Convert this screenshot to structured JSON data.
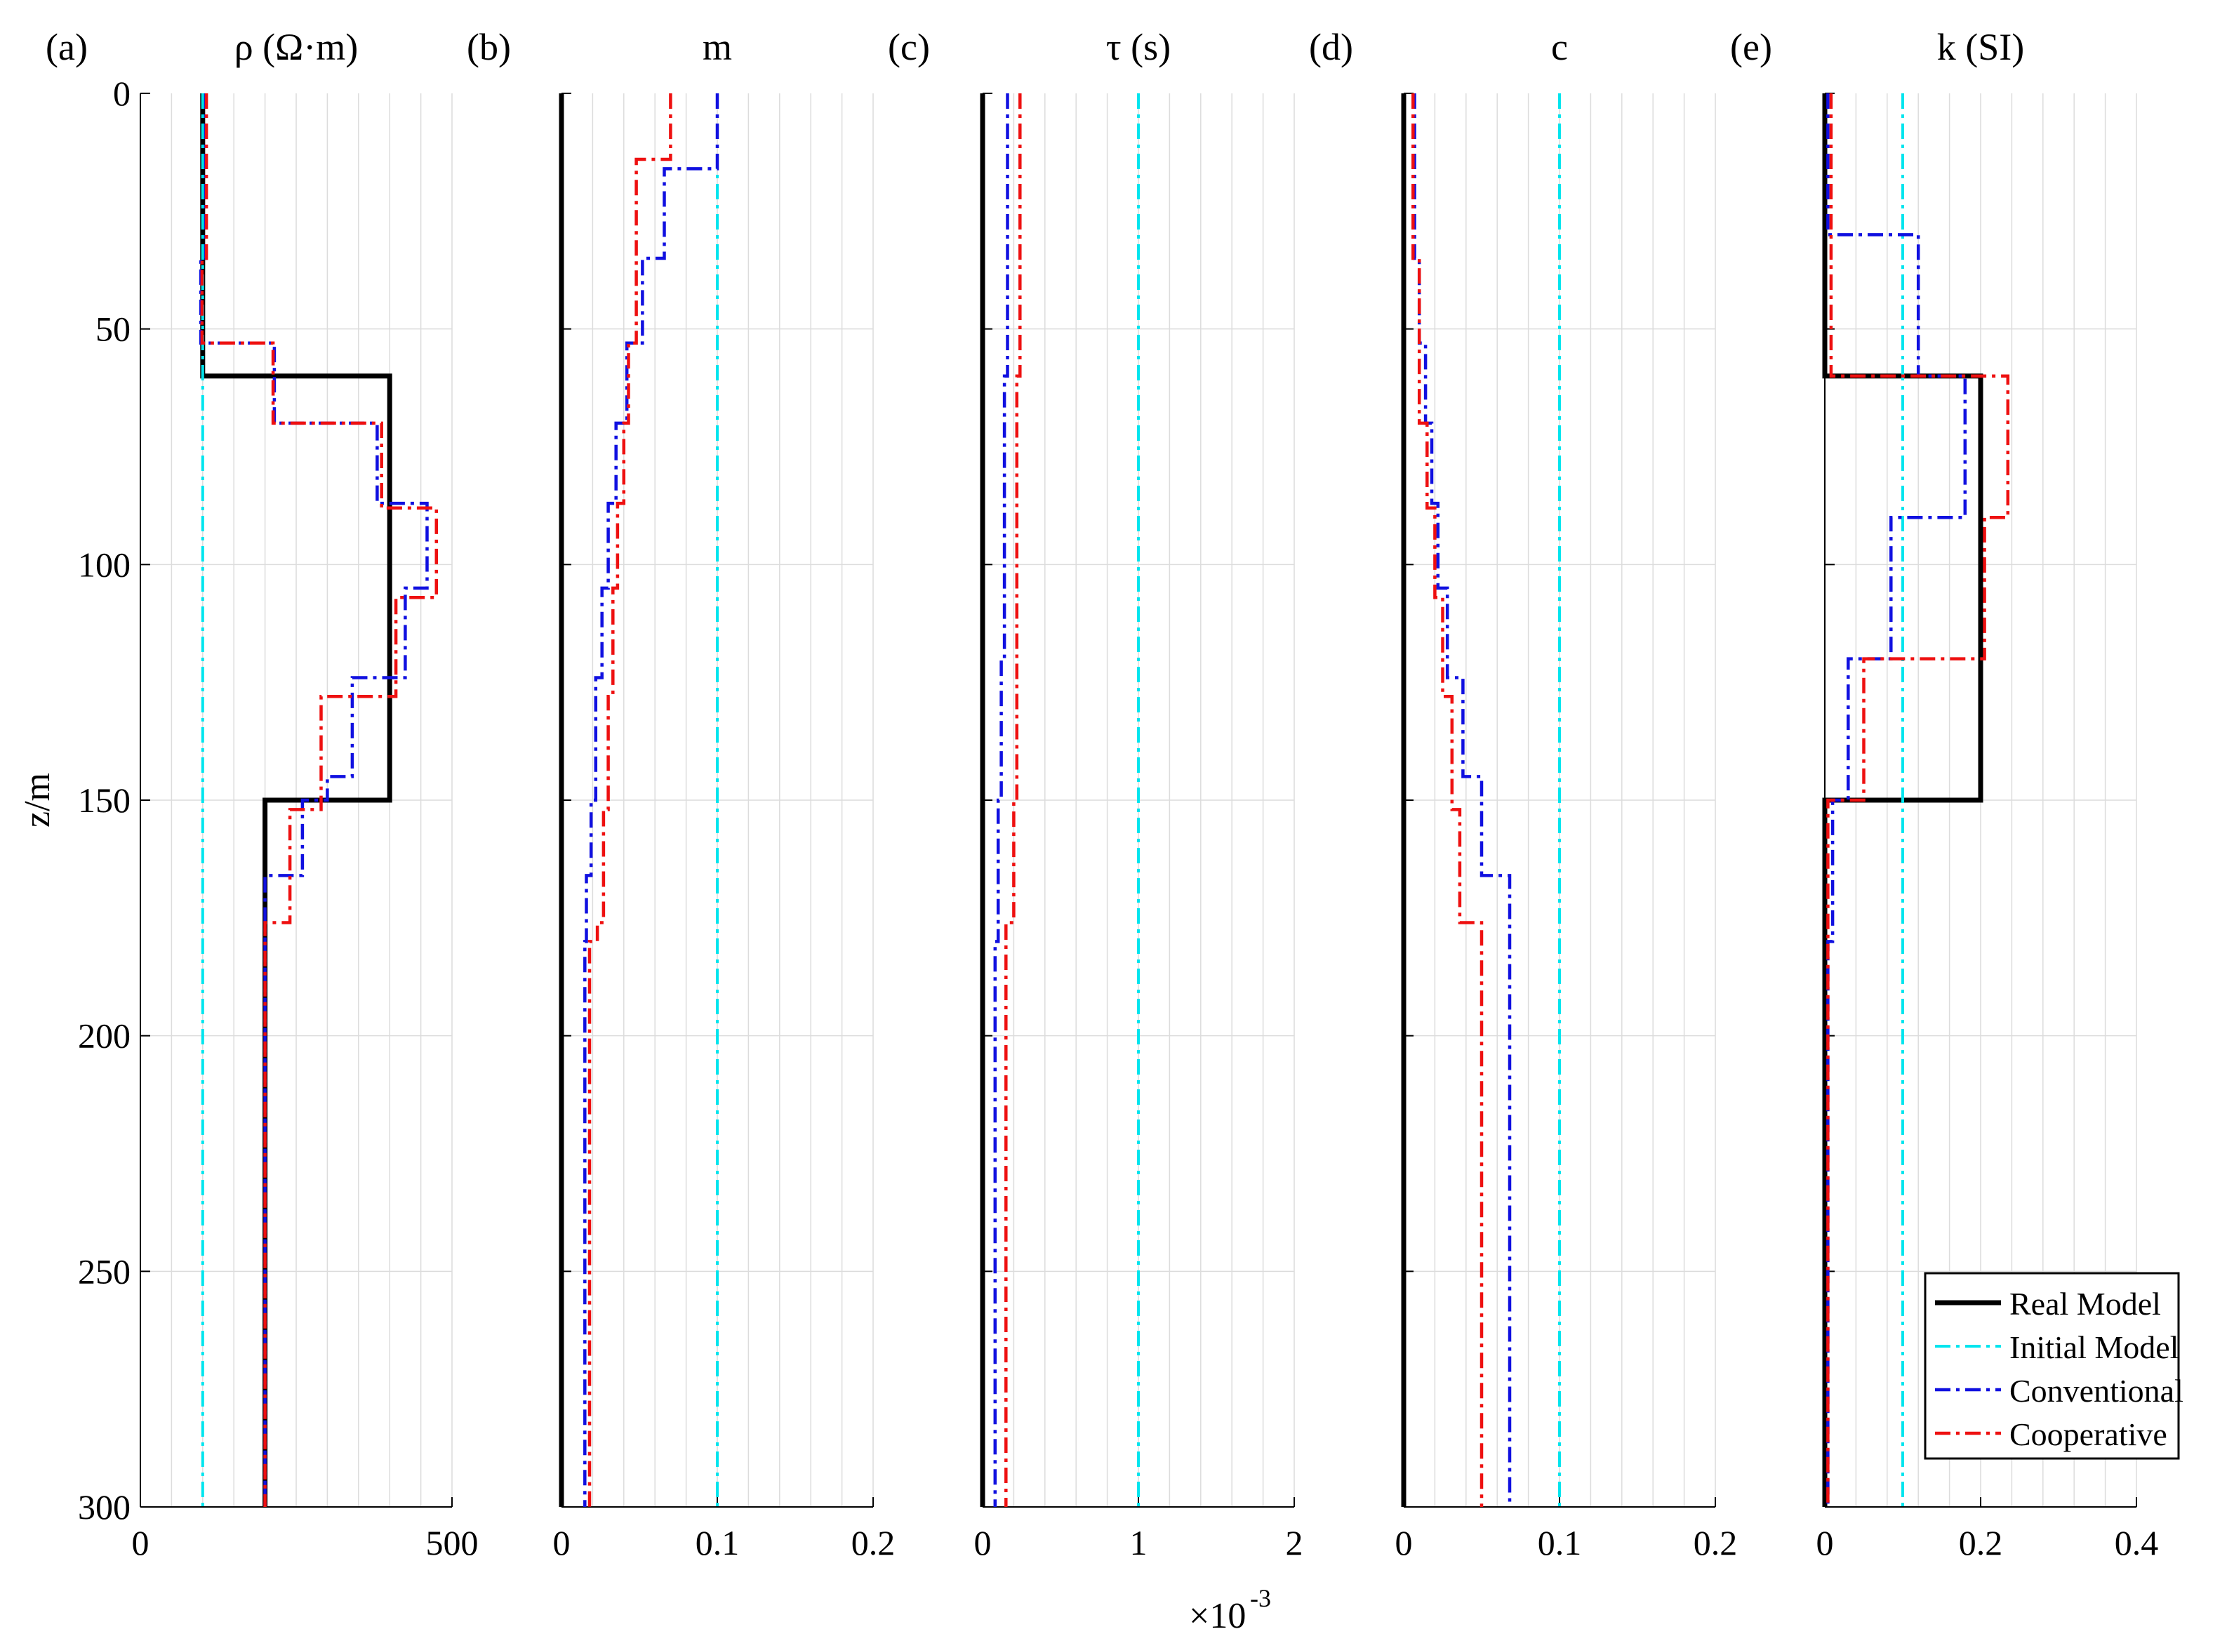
{
  "figure": {
    "ylabel": "z/m",
    "ylim": [
      0,
      300
    ],
    "yticks": [
      0,
      50,
      100,
      150,
      200,
      250,
      300
    ],
    "exponent_label": {
      "base": "×10",
      "power": "-3",
      "panel": 2
    }
  },
  "legend": {
    "placement": "bottom-right",
    "entries": [
      {
        "name": "Real Model",
        "color": "#000000",
        "dash": "solid"
      },
      {
        "name": "Initial Model",
        "color": "#00e5ee",
        "dash": "dashdot"
      },
      {
        "name": "Conventional",
        "color": "#1010e0",
        "dash": "dashdot"
      },
      {
        "name": "Cooperative",
        "color": "#ee1010",
        "dash": "dashdot"
      }
    ]
  },
  "chart_data": [
    {
      "type": "line",
      "panel_label": "(a)",
      "title": "ρ (Ω·m)",
      "xlim": [
        0,
        500
      ],
      "xticks": [
        0,
        500
      ],
      "xticklabels": [
        "0",
        "500"
      ],
      "minor_grid_step": 50,
      "series": [
        {
          "name": "Real Model",
          "x": [
            100,
            100,
            400,
            400,
            200,
            200
          ],
          "y": [
            0,
            60,
            60,
            150,
            150,
            300
          ]
        },
        {
          "name": "Initial Model",
          "x": [
            100,
            100
          ],
          "y": [
            0,
            300
          ]
        },
        {
          "name": "Conventional",
          "x": [
            105,
            105,
            97,
            97,
            215,
            215,
            380,
            380,
            460,
            460,
            425,
            425,
            340,
            340,
            300,
            300,
            260,
            260,
            200,
            200
          ],
          "y": [
            0,
            35,
            35,
            53,
            53,
            70,
            70,
            87,
            87,
            105,
            105,
            124,
            124,
            145,
            145,
            150,
            150,
            166,
            166,
            300
          ]
        },
        {
          "name": "Cooperative",
          "x": [
            106,
            106,
            99,
            99,
            213,
            213,
            387,
            387,
            475,
            475,
            410,
            410,
            290,
            290,
            240,
            240,
            200,
            200
          ],
          "y": [
            0,
            35,
            35,
            53,
            53,
            70,
            70,
            88,
            88,
            107,
            107,
            128,
            128,
            152,
            152,
            176,
            176,
            300
          ]
        }
      ]
    },
    {
      "type": "line",
      "panel_label": "(b)",
      "title": "m",
      "xlim": [
        0,
        0.2
      ],
      "xticks": [
        0,
        0.1,
        0.2
      ],
      "xticklabels": [
        "0",
        "0.1",
        "0.2"
      ],
      "minor_grid_step": 0.02,
      "series": [
        {
          "name": "Real Model",
          "x": [
            0,
            0
          ],
          "y": [
            0,
            300
          ]
        },
        {
          "name": "Initial Model",
          "x": [
            0.1,
            0.1
          ],
          "y": [
            0,
            300
          ]
        },
        {
          "name": "Conventional",
          "x": [
            0.1,
            0.1,
            0.066,
            0.066,
            0.052,
            0.052,
            0.042,
            0.042,
            0.035,
            0.035,
            0.03,
            0.03,
            0.026,
            0.026,
            0.022,
            0.022,
            0.019,
            0.019,
            0.016,
            0.016,
            0.015,
            0.015
          ],
          "y": [
            0,
            16,
            16,
            35,
            35,
            53,
            53,
            70,
            70,
            87,
            87,
            105,
            105,
            124,
            124,
            150,
            150,
            166,
            166,
            180,
            180,
            300
          ]
        },
        {
          "name": "Cooperative",
          "x": [
            0.07,
            0.07,
            0.048,
            0.048,
            0.043,
            0.043,
            0.04,
            0.04,
            0.036,
            0.036,
            0.033,
            0.033,
            0.03,
            0.03,
            0.027,
            0.027,
            0.023,
            0.023,
            0.018,
            0.018
          ],
          "y": [
            0,
            14,
            14,
            53,
            53,
            70,
            70,
            87,
            87,
            105,
            105,
            128,
            128,
            152,
            152,
            176,
            176,
            180,
            180,
            300
          ]
        }
      ]
    },
    {
      "type": "line",
      "panel_label": "(c)",
      "title": "τ (s)",
      "xlim": [
        0,
        2
      ],
      "xticks": [
        0,
        1,
        2
      ],
      "xticklabels": [
        "0",
        "1",
        "2"
      ],
      "minor_grid_step": 0.2,
      "series": [
        {
          "name": "Real Model",
          "x": [
            0,
            0
          ],
          "y": [
            0,
            300
          ]
        },
        {
          "name": "Initial Model",
          "x": [
            1,
            1
          ],
          "y": [
            0,
            300
          ]
        },
        {
          "name": "Conventional",
          "x": [
            0.16,
            0.16,
            0.14,
            0.14,
            0.12,
            0.12,
            0.1,
            0.1,
            0.08,
            0.08
          ],
          "y": [
            0,
            60,
            60,
            120,
            120,
            150,
            150,
            180,
            180,
            300
          ]
        },
        {
          "name": "Cooperative",
          "x": [
            0.24,
            0.24,
            0.22,
            0.22,
            0.2,
            0.2,
            0.15,
            0.15
          ],
          "y": [
            0,
            60,
            60,
            150,
            150,
            176,
            176,
            300
          ]
        }
      ]
    },
    {
      "type": "line",
      "panel_label": "(d)",
      "title": "c",
      "xlim": [
        0,
        0.2
      ],
      "xticks": [
        0,
        0.1,
        0.2
      ],
      "xticklabels": [
        "0",
        "0.1",
        "0.2"
      ],
      "minor_grid_step": 0.02,
      "series": [
        {
          "name": "Real Model",
          "x": [
            0,
            0
          ],
          "y": [
            0,
            300
          ]
        },
        {
          "name": "Initial Model",
          "x": [
            0.1,
            0.1
          ],
          "y": [
            0,
            300
          ]
        },
        {
          "name": "Conventional",
          "x": [
            0.007,
            0.007,
            0.01,
            0.01,
            0.014,
            0.014,
            0.018,
            0.018,
            0.022,
            0.022,
            0.028,
            0.028,
            0.038,
            0.038,
            0.05,
            0.05,
            0.068,
            0.068
          ],
          "y": [
            0,
            35,
            35,
            53,
            53,
            70,
            70,
            87,
            87,
            105,
            105,
            124,
            124,
            145,
            145,
            166,
            166,
            300
          ]
        },
        {
          "name": "Cooperative",
          "x": [
            0.006,
            0.006,
            0.01,
            0.01,
            0.015,
            0.015,
            0.02,
            0.02,
            0.025,
            0.025,
            0.031,
            0.031,
            0.036,
            0.036,
            0.05,
            0.05
          ],
          "y": [
            0,
            35,
            35,
            70,
            70,
            88,
            88,
            107,
            107,
            128,
            128,
            152,
            152,
            176,
            176,
            300
          ]
        }
      ]
    },
    {
      "type": "line",
      "panel_label": "(e)",
      "title": "k (SI)",
      "xlim": [
        0,
        0.4
      ],
      "xticks": [
        0,
        0.2,
        0.4
      ],
      "xticklabels": [
        "0",
        "0.2",
        "0.4"
      ],
      "minor_grid_step": 0.04,
      "series": [
        {
          "name": "Real Model",
          "x": [
            0,
            0,
            0.2,
            0.2,
            0,
            0
          ],
          "y": [
            0,
            60,
            60,
            150,
            150,
            300
          ]
        },
        {
          "name": "Initial Model",
          "x": [
            0.1,
            0.1
          ],
          "y": [
            0,
            300
          ]
        },
        {
          "name": "Conventional",
          "x": [
            0.004,
            0.004,
            0.12,
            0.12,
            0.18,
            0.18,
            0.085,
            0.085,
            0.03,
            0.03,
            0.01,
            0.01,
            0.004,
            0.004
          ],
          "y": [
            0,
            30,
            30,
            60,
            60,
            90,
            90,
            120,
            120,
            150,
            150,
            180,
            180,
            300
          ]
        },
        {
          "name": "Cooperative",
          "x": [
            0.008,
            0.008,
            0.235,
            0.235,
            0.205,
            0.205,
            0.05,
            0.05,
            0.004,
            0.004
          ],
          "y": [
            0,
            60,
            60,
            90,
            90,
            120,
            120,
            150,
            150,
            300
          ]
        }
      ]
    }
  ]
}
